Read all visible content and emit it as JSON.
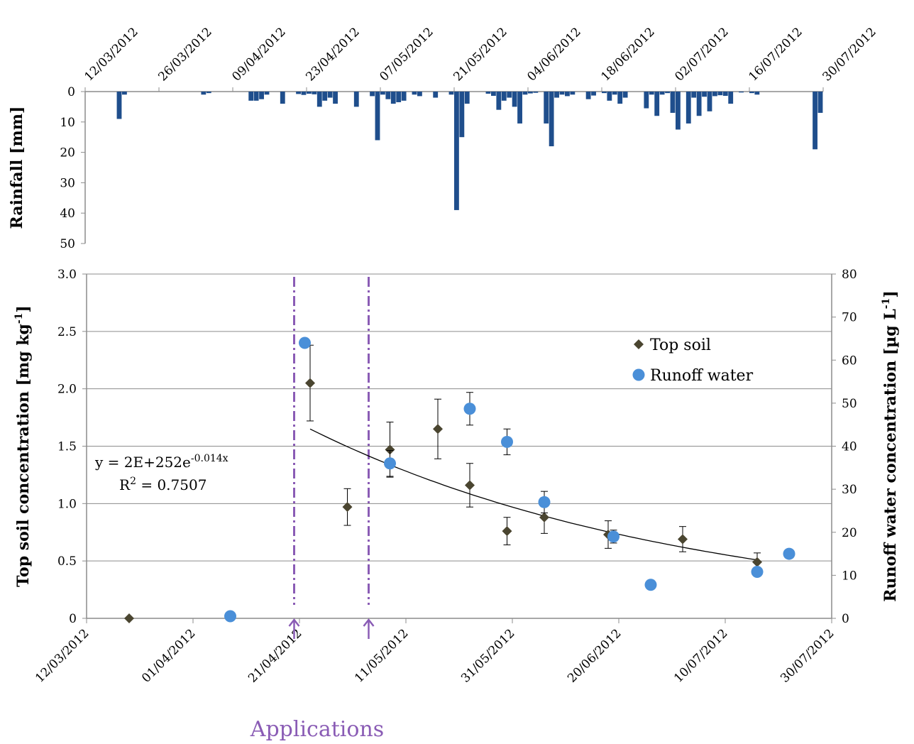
{
  "colors": {
    "rain_bar": "#1f4e8c",
    "top_soil": "#4a4530",
    "runoff": "#4a8fd8",
    "application": "#8a5cb5",
    "grid": "#8c8c8c",
    "trend": "#000000"
  },
  "chart_data": [
    {
      "id": "rainfall",
      "type": "bar",
      "ylabel": "Rainfall [mm]",
      "ylim": [
        50,
        0
      ],
      "y_inverted": true,
      "y_ticks": [
        "0",
        "10",
        "20",
        "30",
        "40",
        "50"
      ],
      "x_ticks": [
        "12/03/2012",
        "26/03/2012",
        "09/04/2012",
        "23/04/2012",
        "07/05/2012",
        "21/05/2012",
        "04/06/2012",
        "18/06/2012",
        "02/07/2012",
        "16/07/2012",
        "30/07/2012"
      ],
      "xlim": [
        "12/03/2012",
        "30/07/2012"
      ],
      "grid": false,
      "dates": [
        "18/03/2012",
        "19/03/2012",
        "03/04/2012",
        "04/04/2012",
        "12/04/2012",
        "13/04/2012",
        "14/04/2012",
        "15/04/2012",
        "18/04/2012",
        "21/04/2012",
        "22/04/2012",
        "23/04/2012",
        "24/04/2012",
        "25/04/2012",
        "26/04/2012",
        "27/04/2012",
        "28/04/2012",
        "02/05/2012",
        "05/05/2012",
        "06/05/2012",
        "07/05/2012",
        "08/05/2012",
        "09/05/2012",
        "10/05/2012",
        "11/05/2012",
        "13/05/2012",
        "14/05/2012",
        "17/05/2012",
        "20/05/2012",
        "21/05/2012",
        "22/05/2012",
        "23/05/2012",
        "27/05/2012",
        "28/05/2012",
        "29/05/2012",
        "30/05/2012",
        "31/05/2012",
        "01/06/2012",
        "02/06/2012",
        "03/06/2012",
        "04/06/2012",
        "05/06/2012",
        "07/06/2012",
        "08/06/2012",
        "09/06/2012",
        "10/06/2012",
        "11/06/2012",
        "12/06/2012",
        "15/06/2012",
        "16/06/2012",
        "18/06/2012",
        "19/06/2012",
        "20/06/2012",
        "21/06/2012",
        "22/06/2012",
        "26/06/2012",
        "27/06/2012",
        "28/06/2012",
        "29/06/2012",
        "30/06/2012",
        "01/07/2012",
        "02/07/2012",
        "04/07/2012",
        "05/07/2012",
        "06/07/2012",
        "07/07/2012",
        "08/07/2012",
        "09/07/2012",
        "10/07/2012",
        "11/07/2012",
        "12/07/2012",
        "14/07/2012",
        "16/07/2012",
        "17/07/2012",
        "28/07/2012",
        "29/07/2012"
      ],
      "values": [
        9,
        1,
        1,
        0.5,
        3,
        3,
        2.5,
        1,
        4,
        0.8,
        1.1,
        0.7,
        0.9,
        5,
        3,
        2,
        4,
        5,
        1.5,
        16,
        1,
        2.5,
        4,
        3.5,
        3,
        1,
        1.5,
        2,
        1,
        39,
        15,
        4,
        0.7,
        1.4,
        6,
        3,
        2,
        5,
        10.5,
        1,
        0.6,
        0.4,
        10.5,
        18,
        2,
        1,
        1.5,
        1,
        2.5,
        1.3,
        0.5,
        3,
        1,
        4,
        2,
        5.5,
        1,
        8,
        1,
        0.5,
        7,
        12.5,
        10.5,
        2,
        8,
        1.7,
        6.5,
        1.5,
        1.2,
        1.4,
        4,
        0.3,
        0.5,
        1,
        19,
        7
      ]
    },
    {
      "id": "concentration",
      "type": "scatter",
      "ylabel": "Top soil concentration [mg kg-1]",
      "ylabel_parts": [
        "Top soil concentration [mg kg",
        "-1",
        "]"
      ],
      "y2label": "Runoff water concentration [µg L-1]",
      "y2label_parts": [
        "Runoff water concentration [µg L",
        "-1",
        "]"
      ],
      "ylim": [
        0,
        3.0
      ],
      "y_ticks": [
        "0",
        "0.5",
        "1.0",
        "1.5",
        "2.0",
        "2.5",
        "3.0"
      ],
      "y2lim": [
        0,
        80
      ],
      "y2_ticks": [
        "0",
        "10",
        "20",
        "30",
        "40",
        "50",
        "60",
        "70",
        "80"
      ],
      "xlim": [
        "12/03/2012",
        "30/07/2012"
      ],
      "x_ticks": [
        "12/03/2012",
        "01/04/2012",
        "21/04/2012",
        "11/05/2012",
        "31/05/2012",
        "20/06/2012",
        "10/07/2012",
        "30/07/2012"
      ],
      "grid": true,
      "legend_position": "top-right",
      "series": [
        {
          "name": "Top soil",
          "axis": "left",
          "marker": "diamond",
          "points": [
            {
              "date": "20/03/2012",
              "y": 0.0
            },
            {
              "date": "23/04/2012",
              "y": 2.05,
              "err": 0.33
            },
            {
              "date": "30/04/2012",
              "y": 0.97,
              "err": 0.16
            },
            {
              "date": "08/05/2012",
              "y": 1.47,
              "err": 0.24
            },
            {
              "date": "17/05/2012",
              "y": 1.65,
              "err": 0.26
            },
            {
              "date": "23/05/2012",
              "y": 1.16,
              "err": 0.19
            },
            {
              "date": "30/05/2012",
              "y": 0.76,
              "err": 0.12
            },
            {
              "date": "06/06/2012",
              "y": 0.88,
              "err": 0.14
            },
            {
              "date": "18/06/2012",
              "y": 0.73,
              "err": 0.12
            },
            {
              "date": "02/07/2012",
              "y": 0.69,
              "err": 0.11
            },
            {
              "date": "16/07/2012",
              "y": 0.49,
              "err": 0.08
            }
          ]
        },
        {
          "name": "Runoff water",
          "axis": "right",
          "marker": "circle",
          "points": [
            {
              "date": "08/04/2012",
              "y": 0.5
            },
            {
              "date": "22/04/2012",
              "y": 64,
              "err": 0
            },
            {
              "date": "08/05/2012",
              "y": 36,
              "err": 3
            },
            {
              "date": "23/05/2012",
              "y": 48.7,
              "err": 3.8
            },
            {
              "date": "30/05/2012",
              "y": 41,
              "err": 3
            },
            {
              "date": "06/06/2012",
              "y": 27,
              "err": 2.5
            },
            {
              "date": "19/06/2012",
              "y": 19,
              "err": 1.5
            },
            {
              "date": "26/06/2012",
              "y": 7.8
            },
            {
              "date": "16/07/2012",
              "y": 10.8,
              "err": 0
            },
            {
              "date": "22/07/2012",
              "y": 15
            }
          ]
        }
      ],
      "trendline": {
        "equation_prefix": "y = 2E+252e",
        "equation_exp": "-0.014x",
        "r2_prefix": "R",
        "r2_sup": "2",
        "r2_value": " = 0.7507",
        "from": "23/04/2012",
        "to": "16/07/2012",
        "a": 1.65,
        "rate_per_day": 0.014
      },
      "applications": {
        "label": "Applications",
        "dates": [
          "20/04/2012",
          "04/05/2012"
        ]
      }
    }
  ]
}
